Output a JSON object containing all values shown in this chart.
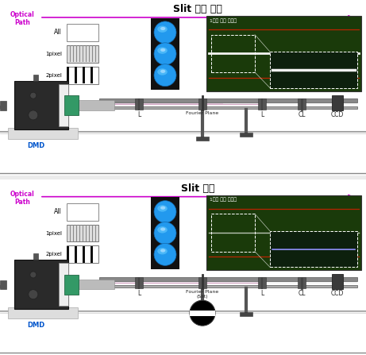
{
  "title_top": "Slit 없을 경우",
  "title_bottom": "Slit 배치",
  "optical_path_label": "Optical\nPath",
  "labels_left": [
    "All",
    "1pixel",
    "2pixel"
  ],
  "label_1pixel_image": "1픽셀 패턴 이미지",
  "bg_color": "#ebebeb",
  "optical_path_color": "#cc00cc",
  "dmd_color": "#0055cc",
  "dark_green": "#1a3a0a",
  "divider_color": "#aaaaaa"
}
